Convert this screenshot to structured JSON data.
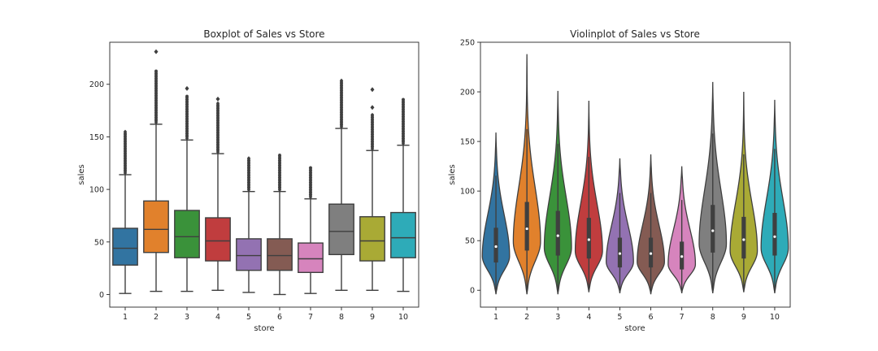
{
  "chart_data": [
    {
      "type": "boxplot",
      "title": "Boxplot of Sales vs Store",
      "xlabel": "store",
      "ylabel": "sales",
      "ylim": [
        -12,
        240
      ],
      "yticks": [
        0,
        50,
        100,
        150,
        200
      ],
      "categories": [
        "1",
        "2",
        "3",
        "4",
        "5",
        "6",
        "7",
        "8",
        "9",
        "10"
      ],
      "colors": [
        "#3274a1",
        "#e1812c",
        "#3a923a",
        "#c03d3e",
        "#9372b2",
        "#845b53",
        "#d684bd",
        "#7f7f7f",
        "#a9aa35",
        "#2eabb8"
      ],
      "series": [
        {
          "store": "1",
          "min": 1,
          "q1": 28,
          "median": 44,
          "q3": 63,
          "whisker_high": 114,
          "outlier_max": 155
        },
        {
          "store": "2",
          "min": 3,
          "q1": 40,
          "median": 62,
          "q3": 89,
          "whisker_high": 162,
          "outlier_max": 214,
          "extreme_outliers": [
            231
          ]
        },
        {
          "store": "3",
          "min": 3,
          "q1": 35,
          "median": 55,
          "q3": 80,
          "whisker_high": 147,
          "outlier_max": 190,
          "extreme_outliers": [
            196
          ]
        },
        {
          "store": "4",
          "min": 4,
          "q1": 32,
          "median": 51,
          "q3": 73,
          "whisker_high": 134,
          "outlier_max": 182,
          "extreme_outliers": [
            186
          ]
        },
        {
          "store": "5",
          "min": 2,
          "q1": 23,
          "median": 37,
          "q3": 53,
          "whisker_high": 98,
          "outlier_max": 130
        },
        {
          "store": "6",
          "min": 0,
          "q1": 23,
          "median": 37,
          "q3": 53,
          "whisker_high": 98,
          "outlier_max": 134
        },
        {
          "store": "7",
          "min": 1,
          "q1": 21,
          "median": 34,
          "q3": 49,
          "whisker_high": 91,
          "outlier_max": 122
        },
        {
          "store": "8",
          "min": 4,
          "q1": 38,
          "median": 60,
          "q3": 86,
          "whisker_high": 158,
          "outlier_max": 204
        },
        {
          "store": "9",
          "min": 4,
          "q1": 32,
          "median": 51,
          "q3": 74,
          "whisker_high": 137,
          "outlier_max": 172,
          "extreme_outliers": [
            178,
            195
          ]
        },
        {
          "store": "10",
          "min": 3,
          "q1": 35,
          "median": 54,
          "q3": 78,
          "whisker_high": 142,
          "outlier_max": 187
        }
      ]
    },
    {
      "type": "violin",
      "title": "Violinplot of Sales vs Store",
      "xlabel": "store",
      "ylabel": "sales",
      "ylim": [
        -17,
        250
      ],
      "yticks": [
        0,
        50,
        100,
        150,
        200,
        250
      ],
      "categories": [
        "1",
        "2",
        "3",
        "4",
        "5",
        "6",
        "7",
        "8",
        "9",
        "10"
      ],
      "colors": [
        "#3274a1",
        "#e1812c",
        "#3a923a",
        "#c03d3e",
        "#9372b2",
        "#845b53",
        "#d684bd",
        "#7f7f7f",
        "#a9aa35",
        "#2eabb8"
      ],
      "series": [
        {
          "store": "1",
          "min": -4,
          "max": 159,
          "q1": 28,
          "median": 44,
          "q3": 63
        },
        {
          "store": "2",
          "min": -4,
          "max": 238,
          "q1": 40,
          "median": 62,
          "q3": 89
        },
        {
          "store": "3",
          "min": -4,
          "max": 201,
          "q1": 35,
          "median": 55,
          "q3": 80
        },
        {
          "store": "4",
          "min": -2,
          "max": 191,
          "q1": 32,
          "median": 51,
          "q3": 73
        },
        {
          "store": "5",
          "min": -3,
          "max": 133,
          "q1": 23,
          "median": 37,
          "q3": 53
        },
        {
          "store": "6",
          "min": -4,
          "max": 137,
          "q1": 23,
          "median": 37,
          "q3": 53
        },
        {
          "store": "7",
          "min": -3,
          "max": 125,
          "q1": 21,
          "median": 34,
          "q3": 49
        },
        {
          "store": "8",
          "min": -3,
          "max": 210,
          "q1": 38,
          "median": 60,
          "q3": 86
        },
        {
          "store": "9",
          "min": -2,
          "max": 200,
          "q1": 32,
          "median": 51,
          "q3": 74
        },
        {
          "store": "10",
          "min": -3,
          "max": 192,
          "q1": 35,
          "median": 54,
          "q3": 78
        }
      ]
    }
  ]
}
